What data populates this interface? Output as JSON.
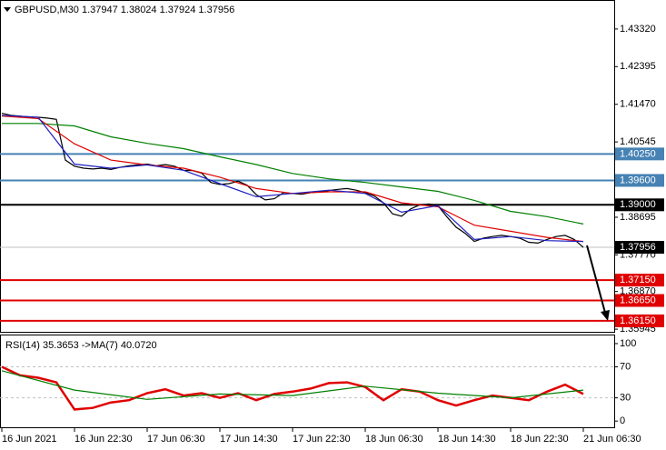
{
  "chart_data": [
    {
      "type": "line",
      "title": "GBPUSD,M30  1.37947 1.38024 1.37924 1.37956",
      "xlim": [
        -0.4,
        134.8
      ],
      "ylim": [
        1.3588,
        1.4401
      ],
      "yticks": [
        {
          "value": 1.4332,
          "label": "1.43320"
        },
        {
          "value": 1.42395,
          "label": "1.42395"
        },
        {
          "value": 1.4147,
          "label": "1.41470"
        },
        {
          "value": 1.40545,
          "label": "1.40545"
        },
        {
          "value": 1.38695,
          "label": "1.38695"
        },
        {
          "value": 1.3777,
          "label": "1.37770"
        },
        {
          "value": 1.3687,
          "label": "1.36870"
        },
        {
          "value": 1.35945,
          "label": "1.35945"
        }
      ],
      "series": [
        {
          "color": "#000000",
          "x": [
            0,
            2,
            4,
            6,
            8,
            10,
            12,
            14,
            16,
            18,
            20,
            22,
            24,
            26,
            28,
            30,
            32,
            34,
            36,
            38,
            40,
            42,
            44,
            46,
            48,
            50,
            52,
            54,
            56,
            58,
            60,
            62,
            64,
            66,
            68,
            70,
            72,
            74,
            76,
            78,
            80,
            82,
            84,
            86,
            88,
            90,
            92,
            94,
            96,
            98,
            100,
            102,
            104,
            106,
            108,
            110,
            112,
            114,
            116,
            118,
            120,
            122,
            124,
            126,
            128
          ],
          "values": [
            1.4125,
            1.412,
            1.4118,
            1.4116,
            1.4115,
            1.4113,
            1.411,
            1.401,
            1.3995,
            1.399,
            1.3988,
            1.399,
            1.3987,
            1.3992,
            1.3996,
            1.3998,
            1.4,
            1.3996,
            1.3999,
            1.3995,
            1.3985,
            1.3984,
            1.3978,
            1.3955,
            1.395,
            1.3952,
            1.3958,
            1.3948,
            1.3925,
            1.3912,
            1.3915,
            1.393,
            1.3928,
            1.3926,
            1.393,
            1.3932,
            1.3935,
            1.3938,
            1.394,
            1.3936,
            1.393,
            1.3922,
            1.3905,
            1.3878,
            1.3872,
            1.389,
            1.39,
            1.3902,
            1.3898,
            1.387,
            1.3845,
            1.383,
            1.381,
            1.3818,
            1.3822,
            1.3825,
            1.3822,
            1.3818,
            1.3808,
            1.3806,
            1.3815,
            1.3822,
            1.3825,
            1.3815,
            1.37956
          ]
        },
        {
          "color": "#008000",
          "x": [
            0,
            8,
            16,
            24,
            32,
            40,
            48,
            56,
            64,
            72,
            80,
            88,
            96,
            104,
            112,
            120,
            128
          ],
          "values": [
            1.41,
            1.41,
            1.4094,
            1.4067,
            1.4051,
            1.4038,
            1.4018,
            1.3999,
            1.3977,
            1.3964,
            1.3955,
            1.3944,
            1.3933,
            1.3911,
            1.3884,
            1.3871,
            1.3853
          ]
        },
        {
          "color": "#e00000",
          "x": [
            0,
            8,
            16,
            24,
            32,
            40,
            48,
            56,
            64,
            72,
            80,
            88,
            96,
            104,
            112,
            120,
            128
          ],
          "values": [
            1.4118,
            1.4112,
            1.405,
            1.401,
            1.3998,
            1.399,
            1.3968,
            1.394,
            1.3928,
            1.3932,
            1.3932,
            1.3905,
            1.3895,
            1.385,
            1.3835,
            1.382,
            1.381
          ]
        },
        {
          "color": "#2020c0",
          "x": [
            0,
            8,
            16,
            24,
            32,
            40,
            48,
            56,
            64,
            72,
            80,
            88,
            96,
            104,
            112,
            120,
            128
          ],
          "values": [
            1.412,
            1.4115,
            1.4,
            1.399,
            1.3998,
            1.3985,
            1.3952,
            1.392,
            1.3928,
            1.3936,
            1.3928,
            1.3882,
            1.3898,
            1.3815,
            1.3822,
            1.3812,
            1.381
          ]
        }
      ],
      "levels": [
        {
          "value": 1.4025,
          "label": "1.40250",
          "color": "#4682b4"
        },
        {
          "value": 1.396,
          "label": "1.39600",
          "color": "#4682b4"
        },
        {
          "value": 1.39,
          "label": "1.39000",
          "color": "#000000"
        },
        {
          "value": 1.3715,
          "label": "1.37150",
          "color": "#e00000"
        },
        {
          "value": 1.3665,
          "label": "1.36650",
          "color": "#e00000"
        },
        {
          "value": 1.3615,
          "label": "1.36150",
          "color": "#e00000"
        }
      ],
      "last": {
        "value": 1.37956,
        "label": "1.37956",
        "color": "#c0c0c0"
      }
    },
    {
      "type": "line",
      "title": "RSI(14) 35.3653  ->MA(7) 40.0720",
      "xlim": [
        -0.4,
        134.8
      ],
      "ylim": [
        -8,
        110.5
      ],
      "yticks": [
        100,
        70,
        30,
        0
      ],
      "dashed_levels": [
        70,
        30
      ],
      "xticks": [
        {
          "value": 0,
          "label": "16 Jun 2021"
        },
        {
          "value": 16,
          "label": "16 Jun 22:30"
        },
        {
          "value": 32,
          "label": "17 Jun 06:30"
        },
        {
          "value": 48,
          "label": "17 Jun 14:30"
        },
        {
          "value": 64,
          "label": "17 Jun 22:30"
        },
        {
          "value": 80,
          "label": "18 Jun 06:30"
        },
        {
          "value": 96,
          "label": "18 Jun 14:30"
        },
        {
          "value": 112,
          "label": "18 Jun 22:30"
        },
        {
          "value": 128,
          "label": "21 Jun 06:30"
        }
      ],
      "series": [
        {
          "color": "#e00000",
          "x": [
            0,
            4,
            8,
            12,
            16,
            20,
            24,
            28,
            32,
            36,
            40,
            44,
            48,
            52,
            56,
            60,
            64,
            68,
            72,
            76,
            80,
            84,
            88,
            92,
            96,
            100,
            104,
            108,
            112,
            116,
            120,
            124,
            128
          ],
          "values": [
            70,
            59,
            56,
            50,
            15,
            17,
            24,
            27,
            36,
            41,
            33,
            36,
            30,
            36,
            27,
            35,
            38,
            42,
            49,
            50,
            44,
            27,
            41,
            38,
            27,
            20,
            27,
            33,
            30,
            27,
            38,
            47,
            35
          ]
        },
        {
          "color": "#008000",
          "x": [
            0,
            16,
            32,
            48,
            64,
            80,
            96,
            112,
            128
          ],
          "values": [
            65,
            40,
            28,
            35,
            33,
            45,
            36,
            30,
            40
          ]
        }
      ]
    }
  ]
}
